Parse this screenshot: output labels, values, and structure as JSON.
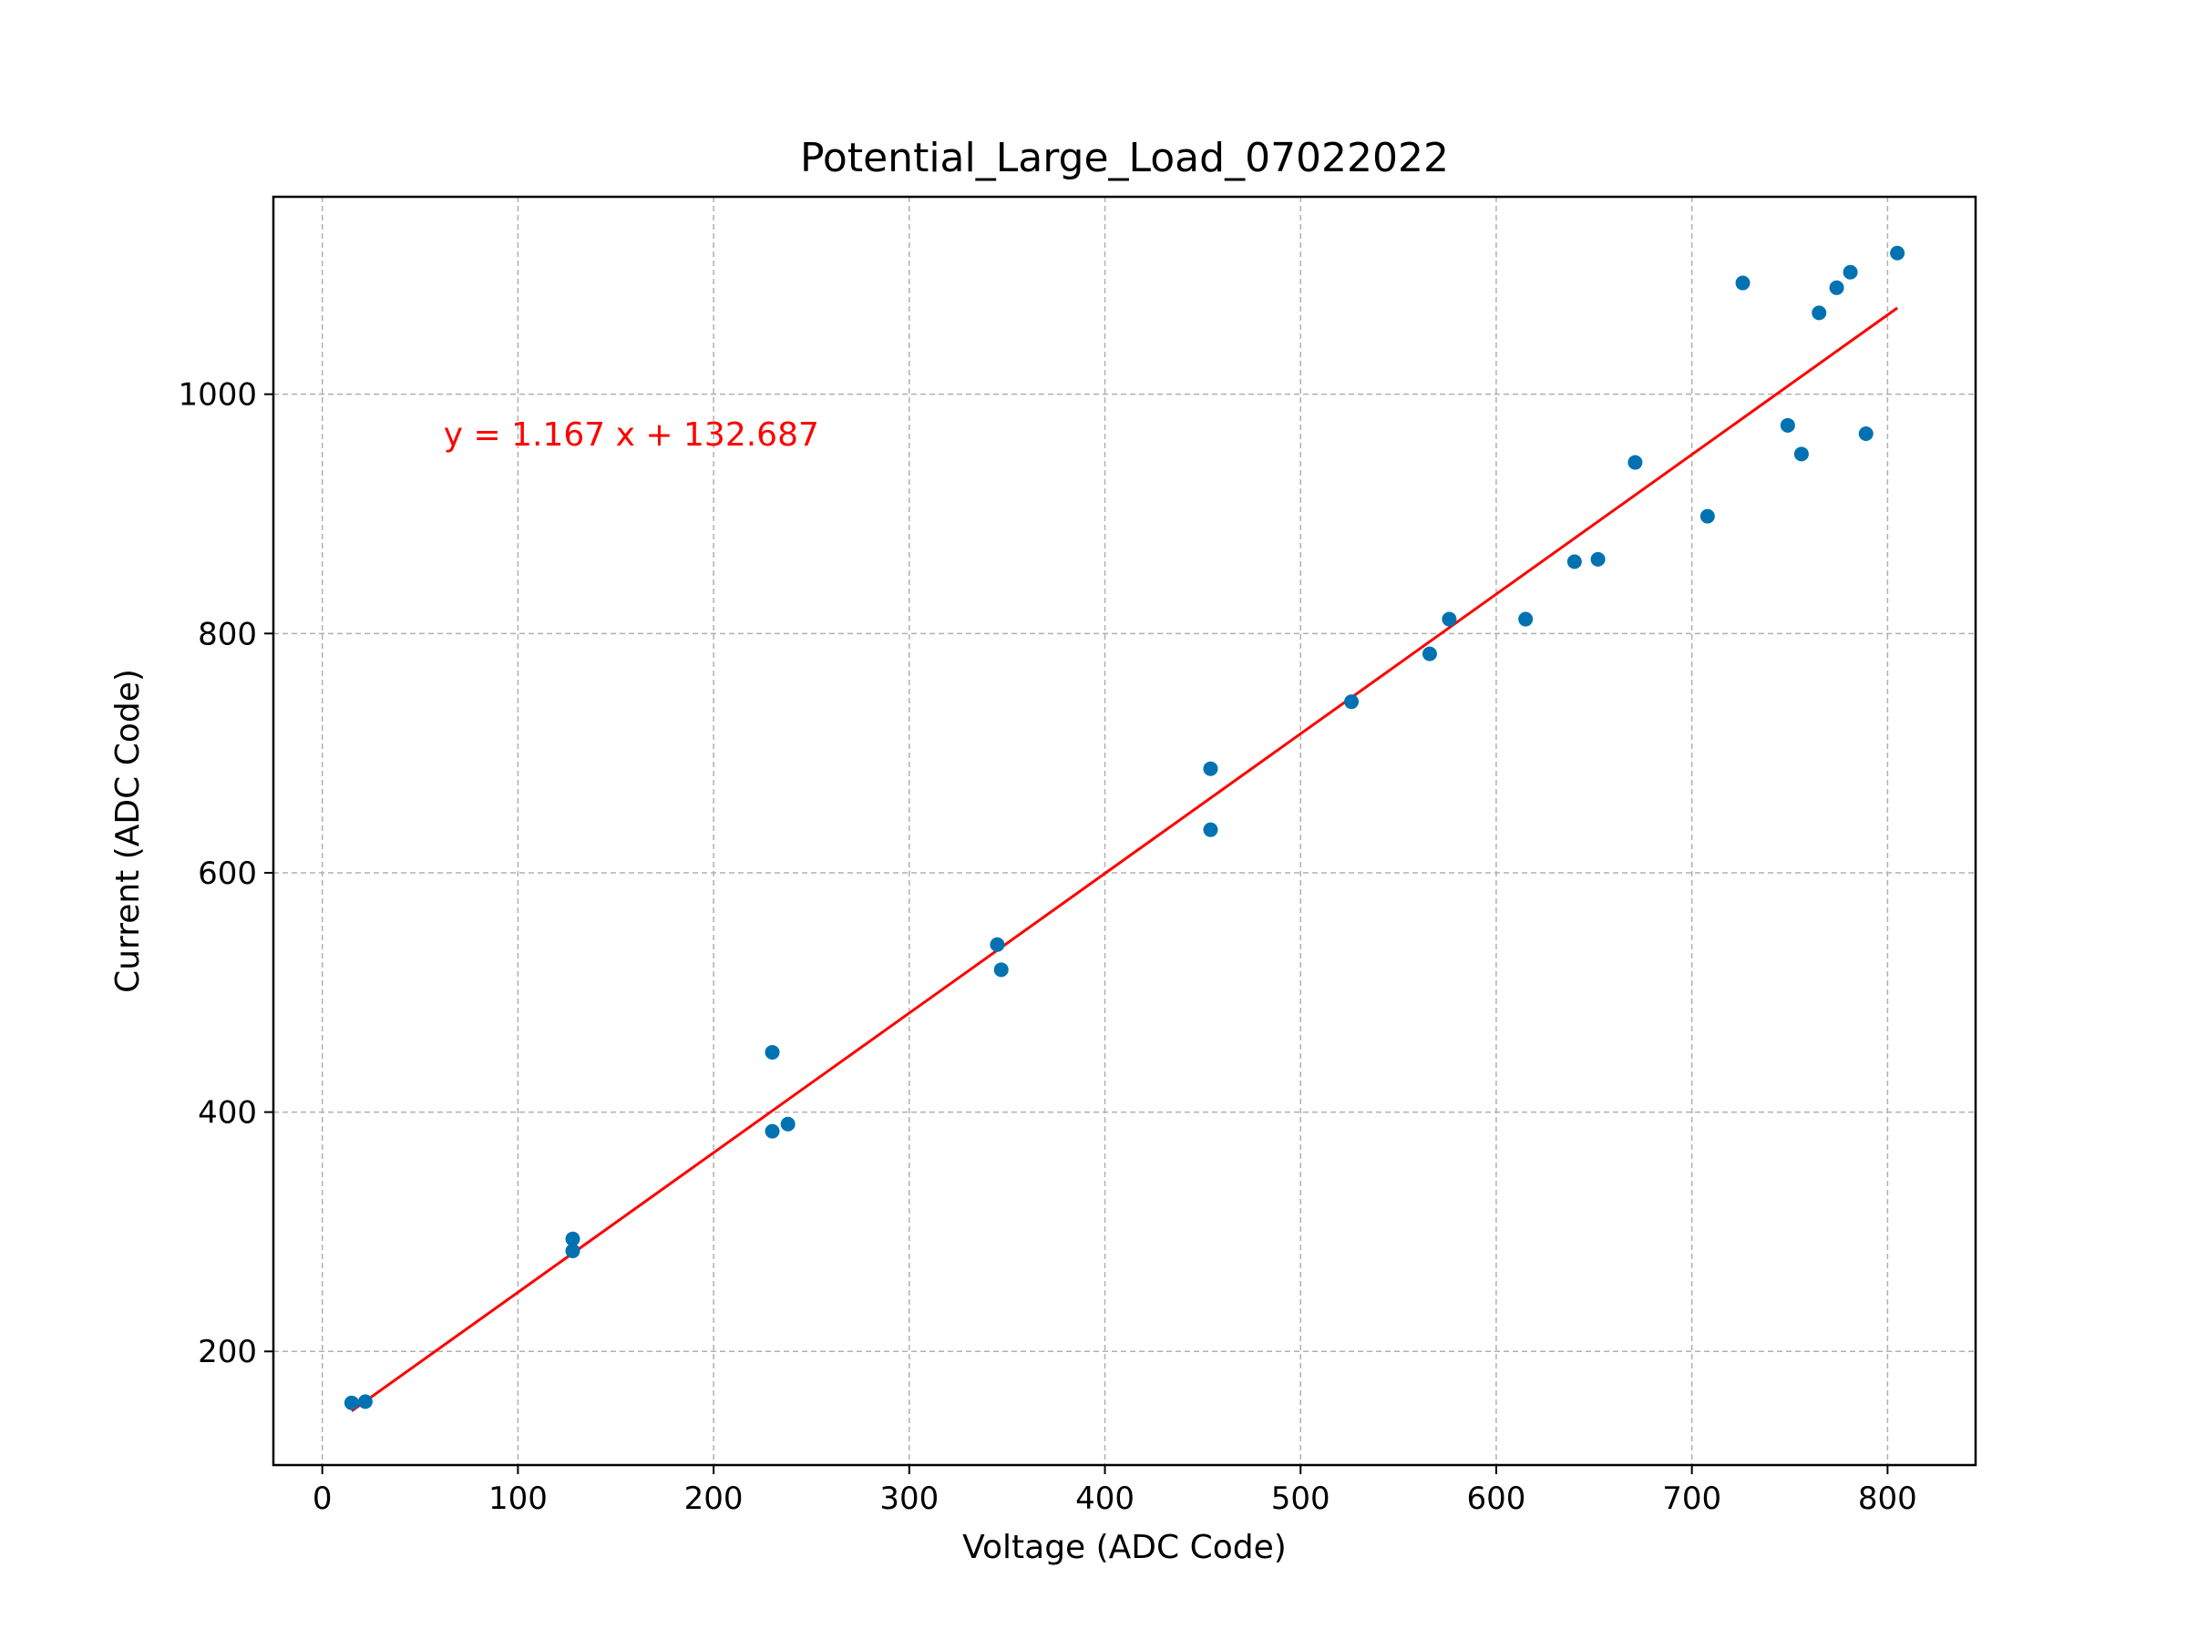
{
  "chart_data": {
    "type": "scatter",
    "title": "Potential_Large_Load_07022022",
    "xlabel": "Voltage (ADC Code)",
    "ylabel": "Current (ADC Code)",
    "xlim": [
      -25,
      845
    ],
    "ylim": [
      105,
      1165
    ],
    "xticks": [
      0,
      100,
      200,
      300,
      400,
      500,
      600,
      700,
      800
    ],
    "yticks": [
      200,
      400,
      600,
      800,
      1000
    ],
    "grid": true,
    "series": [
      {
        "kind": "scatter",
        "color": "#0072B2",
        "points": [
          [
            15,
            157
          ],
          [
            22,
            158
          ],
          [
            128,
            294
          ],
          [
            128,
            284
          ],
          [
            230,
            450
          ],
          [
            230,
            384
          ],
          [
            238,
            390
          ],
          [
            345,
            540
          ],
          [
            347,
            519
          ],
          [
            454,
            687
          ],
          [
            454,
            636
          ],
          [
            526,
            743
          ],
          [
            566,
            783
          ],
          [
            576,
            812
          ],
          [
            615,
            812
          ],
          [
            640,
            860
          ],
          [
            652,
            862
          ],
          [
            671,
            943
          ],
          [
            708,
            898
          ],
          [
            726,
            1093
          ],
          [
            749,
            974
          ],
          [
            756,
            950
          ],
          [
            765,
            1068
          ],
          [
            774,
            1089
          ],
          [
            781,
            1102
          ],
          [
            789,
            967
          ],
          [
            805,
            1118
          ]
        ]
      },
      {
        "kind": "fit-line",
        "color": "#FF0000",
        "slope": 1.167,
        "intercept": 132.687,
        "x_range": [
          15,
          805
        ]
      }
    ],
    "annotations": [
      {
        "text": "y = 1.167 x + 132.687",
        "x": 62,
        "y": 957,
        "color": "#FF0000"
      }
    ]
  }
}
